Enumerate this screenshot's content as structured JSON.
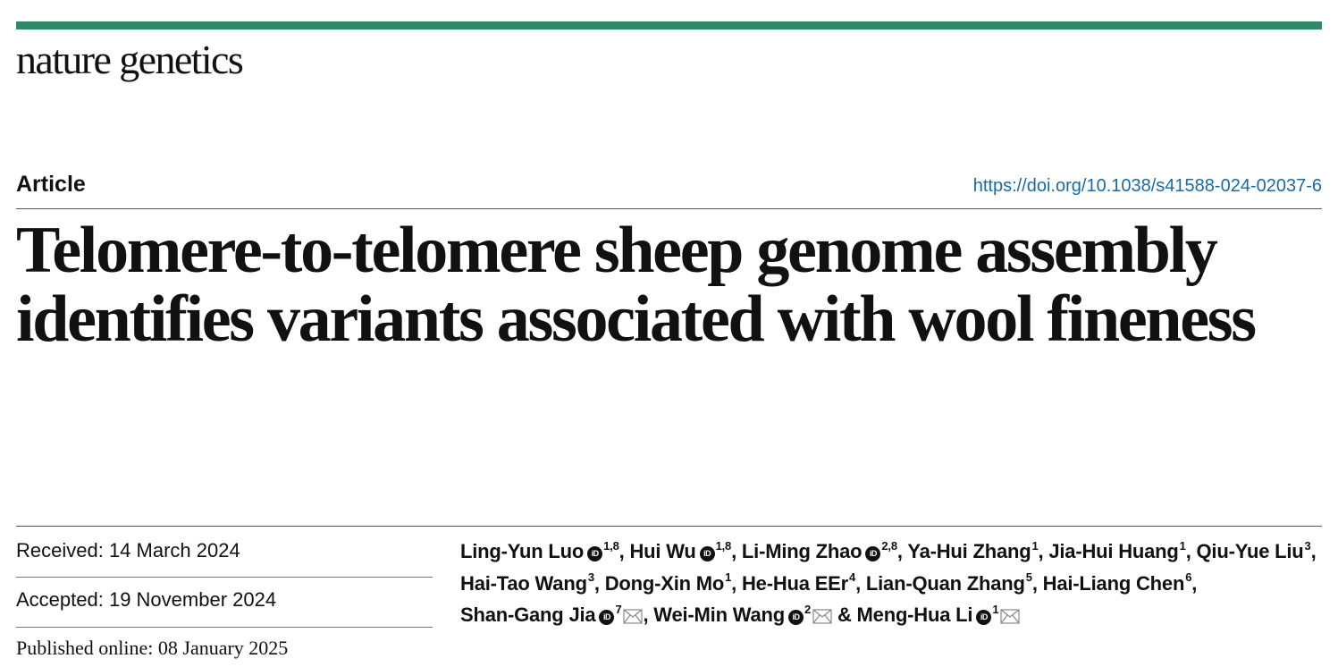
{
  "journal": "nature genetics",
  "article_type": "Article",
  "doi": "https://doi.org/10.1038/s41588-024-02037-6",
  "title": "Telomere-to-telomere sheep genome assembly identifies variants associated with wool fineness",
  "dates": {
    "received": "Received: 14 March 2024",
    "accepted": "Accepted: 19 November 2024",
    "published": "Published online: 08 January 2025"
  },
  "authors": [
    {
      "name": "Ling-Yun Luo",
      "sup": "1,8",
      "orcid": true,
      "email": false,
      "sep": ","
    },
    {
      "name": "Hui Wu",
      "sup": "1,8",
      "orcid": true,
      "email": false,
      "sep": ","
    },
    {
      "name": "Li-Ming Zhao",
      "sup": "2,8",
      "orcid": true,
      "email": false,
      "sep": ","
    },
    {
      "name": "Ya-Hui Zhang",
      "sup": "1",
      "orcid": false,
      "email": false,
      "sep": ","
    },
    {
      "name": "Jia-Hui Huang",
      "sup": "1",
      "orcid": false,
      "email": false,
      "sep": ","
    },
    {
      "name": "Qiu-Yue Liu",
      "sup": "3",
      "orcid": false,
      "email": false,
      "sep": ","
    },
    {
      "name": "Hai-Tao Wang",
      "sup": "3",
      "orcid": false,
      "email": false,
      "sep": ","
    },
    {
      "name": "Dong-Xin Mo",
      "sup": "1",
      "orcid": false,
      "email": false,
      "sep": ","
    },
    {
      "name": "He-Hua EEr",
      "sup": "4",
      "orcid": false,
      "email": false,
      "sep": ","
    },
    {
      "name": "Lian-Quan Zhang",
      "sup": "5",
      "orcid": false,
      "email": false,
      "sep": ","
    },
    {
      "name": "Hai-Liang Chen",
      "sup": "6",
      "orcid": false,
      "email": false,
      "sep": ","
    },
    {
      "name": "Shan-Gang Jia",
      "sup": "7",
      "orcid": true,
      "email": true,
      "sep": ","
    },
    {
      "name": "Wei-Min Wang",
      "sup": "2",
      "orcid": true,
      "email": true,
      "sep": " &"
    },
    {
      "name": "Meng-Hua Li",
      "sup": "1",
      "orcid": true,
      "email": true,
      "sep": ""
    }
  ],
  "icons": {
    "orcid": "orcid-icon",
    "email": "envelope-icon"
  },
  "colors": {
    "accent_bar": "#2e8a66",
    "link": "#1a6aa8"
  }
}
